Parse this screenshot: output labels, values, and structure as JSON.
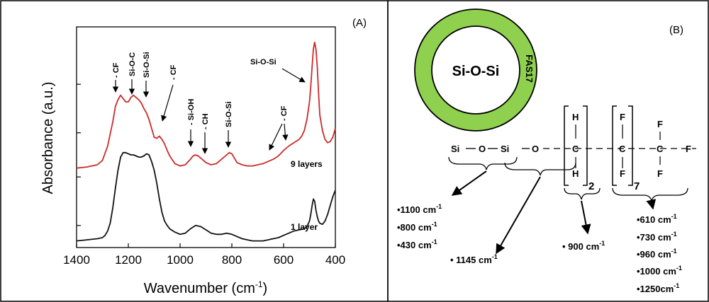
{
  "panel_a": {
    "label": "(A)",
    "chart_data": {
      "type": "line",
      "title": "",
      "xlabel": "Wavenumber (cm",
      "xlabel_sup": "-1",
      "xlabel_close": ")",
      "ylabel": "Absorbance (a.u.)",
      "xlim": [
        1400,
        400
      ],
      "x_reversed": true,
      "ylim": [
        0,
        10
      ],
      "grid": false,
      "ticks": [
        "1400",
        "1200",
        "1000",
        "800",
        "600",
        "400"
      ],
      "tick_values": [
        1400,
        1200,
        1000,
        800,
        600,
        400
      ],
      "y_minor_ticks": [
        1,
        3.2,
        5.2,
        7.4
      ],
      "series": [
        {
          "name": "9 layers",
          "color": "#cc2a2a",
          "x": [
            1400,
            1360,
            1320,
            1300,
            1280,
            1260,
            1250,
            1240,
            1230,
            1220,
            1210,
            1200,
            1190,
            1180,
            1170,
            1160,
            1150,
            1140,
            1130,
            1120,
            1110,
            1100,
            1090,
            1080,
            1070,
            1060,
            1050,
            1040,
            1020,
            1000,
            980,
            960,
            950,
            940,
            930,
            920,
            900,
            880,
            860,
            840,
            820,
            810,
            800,
            790,
            780,
            760,
            740,
            720,
            700,
            680,
            660,
            640,
            620,
            600,
            580,
            560,
            540,
            530,
            520,
            510,
            500,
            495,
            490,
            485,
            480,
            475,
            470,
            465,
            460,
            450,
            440,
            430,
            420,
            410,
            400
          ],
          "y": [
            3.6,
            3.65,
            3.75,
            3.95,
            4.6,
            5.7,
            6.4,
            6.7,
            6.9,
            6.75,
            6.6,
            6.6,
            6.8,
            6.9,
            6.8,
            6.7,
            6.55,
            6.3,
            6.1,
            5.8,
            5.4,
            5.0,
            4.95,
            5.05,
            4.9,
            4.7,
            4.4,
            4.15,
            3.8,
            3.7,
            3.75,
            4.0,
            4.15,
            4.2,
            4.15,
            4.05,
            3.85,
            3.75,
            3.8,
            4.0,
            4.2,
            4.3,
            4.25,
            4.05,
            3.85,
            3.75,
            3.7,
            3.7,
            3.75,
            3.8,
            3.9,
            4.0,
            4.15,
            4.4,
            4.6,
            4.75,
            4.9,
            5.05,
            5.3,
            5.8,
            6.6,
            7.3,
            8.2,
            9.0,
            9.3,
            9.0,
            8.2,
            7.0,
            6.0,
            5.3,
            4.9,
            4.75,
            4.8,
            5.0,
            5.4
          ]
        },
        {
          "name": "1 layer",
          "color": "#111111",
          "x": [
            1400,
            1360,
            1320,
            1300,
            1290,
            1280,
            1270,
            1260,
            1250,
            1240,
            1230,
            1220,
            1210,
            1200,
            1190,
            1180,
            1170,
            1160,
            1150,
            1140,
            1130,
            1120,
            1110,
            1100,
            1090,
            1080,
            1070,
            1060,
            1050,
            1040,
            1020,
            1000,
            980,
            960,
            940,
            920,
            900,
            880,
            860,
            840,
            820,
            800,
            780,
            760,
            740,
            720,
            700,
            680,
            660,
            640,
            620,
            600,
            580,
            560,
            540,
            520,
            510,
            500,
            495,
            490,
            485,
            480,
            475,
            470,
            465,
            460,
            450,
            440,
            430,
            420,
            410,
            400
          ],
          "y": [
            0.3,
            0.35,
            0.4,
            0.45,
            0.55,
            0.75,
            1.1,
            1.8,
            2.7,
            3.5,
            4.1,
            4.3,
            4.3,
            4.25,
            4.2,
            4.2,
            4.15,
            4.1,
            4.1,
            4.15,
            4.25,
            4.2,
            3.9,
            3.5,
            2.9,
            2.2,
            1.6,
            1.2,
            1.0,
            0.85,
            0.7,
            0.6,
            0.65,
            0.85,
            1.0,
            0.95,
            0.8,
            0.65,
            0.6,
            0.6,
            0.65,
            0.6,
            0.5,
            0.4,
            0.35,
            0.3,
            0.3,
            0.3,
            0.35,
            0.4,
            0.45,
            0.55,
            0.65,
            0.75,
            0.8,
            0.85,
            0.95,
            1.2,
            1.5,
            1.9,
            2.2,
            2.1,
            1.7,
            1.4,
            1.2,
            1.1,
            1.05,
            1.2,
            1.5,
            1.9,
            2.3,
            2.6
          ]
        }
      ],
      "series_labels": [
        "9 layers",
        "1 layer"
      ],
      "annotations": [
        "- CF",
        "Si-O-C",
        "Si-O-Si",
        "- CF",
        "- Si-OH",
        "- CH",
        "Si-O-Si",
        "- CF",
        "Si-O-Si"
      ]
    }
  },
  "panel_b": {
    "label": "(B)",
    "ring": {
      "core_text": "Si-O-Si",
      "shell_text": "FAS17",
      "shell_color": "#8fd14f",
      "core_color": "#ffffff"
    },
    "chain": {
      "atoms": [
        "Si",
        "O",
        "Si",
        "O",
        "C",
        "C",
        "F"
      ],
      "h_top": "H",
      "h_bottom": "H",
      "f_top": "F",
      "f_bottom": "F",
      "f_top2": "F",
      "f_bottom2": "F",
      "sub_ch2": "2",
      "sub_cf2": "7"
    },
    "groups": {
      "siosi": [
        "•1100 cm",
        "•800 cm",
        "•430 cm"
      ],
      "sioc": [
        "• 1145 cm"
      ],
      "ch": [
        "• 900 cm"
      ],
      "cf": [
        "•610 cm",
        "•730 cm",
        "•960 cm",
        "•1000 cm",
        "•1250cm"
      ],
      "unit_sup": "-1"
    }
  }
}
